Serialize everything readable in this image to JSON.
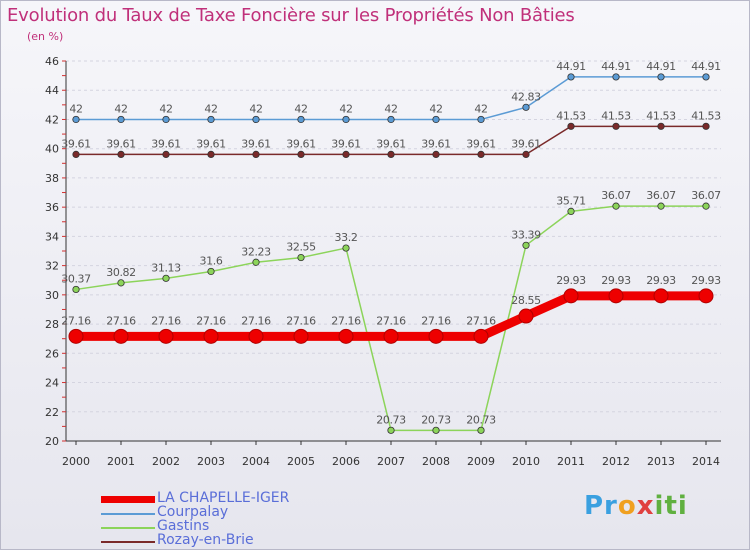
{
  "chart_data": {
    "type": "line",
    "title": "Evolution du Taux de Taxe Foncière sur les Propriétés Non Bâties",
    "ylabel": "(en %)",
    "xlabel": "",
    "ylim": [
      20,
      46
    ],
    "yticks": [
      20,
      22,
      24,
      26,
      28,
      30,
      32,
      34,
      36,
      38,
      40,
      42,
      44,
      46
    ],
    "categories": [
      "2000",
      "2001",
      "2002",
      "2003",
      "2004",
      "2005",
      "2006",
      "2007",
      "2008",
      "2009",
      "2010",
      "2011",
      "2012",
      "2013",
      "2014"
    ],
    "series": [
      {
        "name": "Courpalay",
        "color": "#5b9bd5",
        "values": [
          42,
          42,
          42,
          42,
          42,
          42,
          42,
          42,
          42,
          42,
          42.83,
          44.91,
          44.91,
          44.91,
          44.91
        ],
        "labels": [
          "42",
          "42",
          "42",
          "42",
          "42",
          "42",
          "42",
          "42",
          "42",
          "42",
          "42.83",
          "44.91",
          "44.91",
          "44.91",
          "44.91"
        ]
      },
      {
        "name": "Rozay-en-Brie",
        "color": "#7a2a2a",
        "values": [
          39.61,
          39.61,
          39.61,
          39.61,
          39.61,
          39.61,
          39.61,
          39.61,
          39.61,
          39.61,
          39.61,
          41.53,
          41.53,
          41.53,
          41.53
        ],
        "labels": [
          "39.61",
          "39.61",
          "39.61",
          "39.61",
          "39.61",
          "39.61",
          "39.61",
          "39.61",
          "39.61",
          "39.61",
          "39.61",
          "41.53",
          "41.53",
          "41.53",
          "41.53"
        ]
      },
      {
        "name": "Gastins",
        "color": "#8cd45a",
        "values": [
          30.37,
          30.82,
          31.13,
          31.6,
          32.23,
          32.55,
          33.2,
          20.73,
          20.73,
          20.73,
          33.39,
          35.71,
          36.07,
          36.07,
          36.07
        ],
        "labels": [
          "30.37",
          "30.82",
          "31.13",
          "31.6",
          "32.23",
          "32.55",
          "33.2",
          "20.73",
          "20.73",
          "20.73",
          "33.39",
          "35.71",
          "36.07",
          "36.07",
          "36.07"
        ]
      },
      {
        "name": "LA CHAPELLE-IGER",
        "color": "#ee0000",
        "values": [
          27.16,
          27.16,
          27.16,
          27.16,
          27.16,
          27.16,
          27.16,
          27.16,
          27.16,
          27.16,
          28.55,
          29.93,
          29.93,
          29.93,
          29.93
        ],
        "labels": [
          "27.16",
          "27.16",
          "27.16",
          "27.16",
          "27.16",
          "27.16",
          "27.16",
          "27.16",
          "27.16",
          "27.16",
          "28.55",
          "29.93",
          "29.93",
          "29.93",
          "29.93"
        ]
      }
    ],
    "legend": [
      "LA CHAPELLE-IGER",
      "Courpalay",
      "Gastins",
      "Rozay-en-Brie"
    ],
    "legend_position": "bottom-left"
  },
  "logo": {
    "p1": "Pr",
    "p2": "o",
    "p3": "x",
    "p4": "iti"
  }
}
